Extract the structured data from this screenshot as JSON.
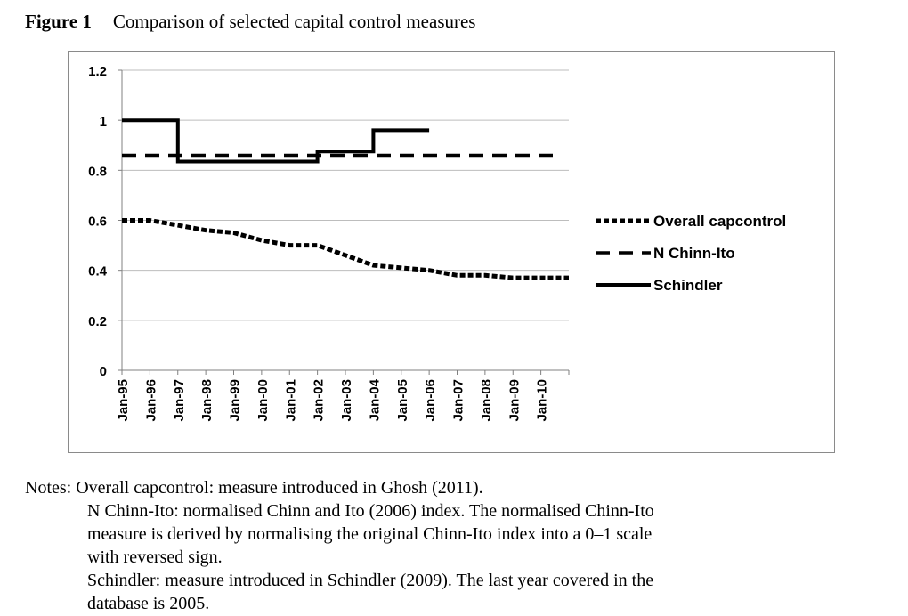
{
  "figure": {
    "label": "Figure 1",
    "title": "Comparison of selected capital control measures"
  },
  "chart_data": {
    "type": "line",
    "title": "",
    "xlabel": "",
    "ylabel": "",
    "ylim": [
      0,
      1.2
    ],
    "yticks": [
      "0",
      "0.2",
      "0.4",
      "0.6",
      "0.8",
      "1",
      "1.2"
    ],
    "categories": [
      "Jan-95",
      "Jan-96",
      "Jan-97",
      "Jan-98",
      "Jan-99",
      "Jan-00",
      "Jan-01",
      "Jan-02",
      "Jan-03",
      "Jan-04",
      "Jan-05",
      "Jan-06",
      "Jan-07",
      "Jan-08",
      "Jan-09",
      "Jan-10"
    ],
    "grid": "horizontal",
    "legend_position": "right",
    "series": [
      {
        "name": "Overall capcontrol",
        "style": "dotted",
        "x": [
          1995,
          1996,
          1997,
          1998,
          1999,
          2000,
          2001,
          2002,
          2003,
          2004,
          2005,
          2006,
          2007,
          2008,
          2009,
          2010,
          2011
        ],
        "values": [
          0.6,
          0.6,
          0.58,
          0.56,
          0.55,
          0.52,
          0.5,
          0.5,
          0.46,
          0.42,
          0.41,
          0.4,
          0.38,
          0.38,
          0.37,
          0.37,
          0.37
        ]
      },
      {
        "name": "N Chinn-Ito",
        "style": "dashed",
        "x": [
          1995,
          2010.5
        ],
        "values": [
          0.86,
          0.86
        ]
      },
      {
        "name": "Schindler",
        "style": "solid",
        "x": [
          1995,
          1997,
          1997,
          2002,
          2002,
          2004,
          2004,
          2006
        ],
        "values": [
          1.0,
          1.0,
          0.835,
          0.835,
          0.875,
          0.875,
          0.96,
          0.96
        ]
      }
    ]
  },
  "notes": {
    "line1": "Notes: Overall capcontrol: measure introduced in Ghosh (2011).",
    "line2": "N Chinn-Ito: normalised Chinn and Ito (2006) index. The normalised Chinn-Ito",
    "line3": "measure is derived by normalising the original Chinn-Ito index into a 0–1 scale",
    "line4": "with reversed sign.",
    "line5": "Schindler: measure introduced in Schindler (2009). The last year covered in the",
    "line6": "database is 2005."
  }
}
